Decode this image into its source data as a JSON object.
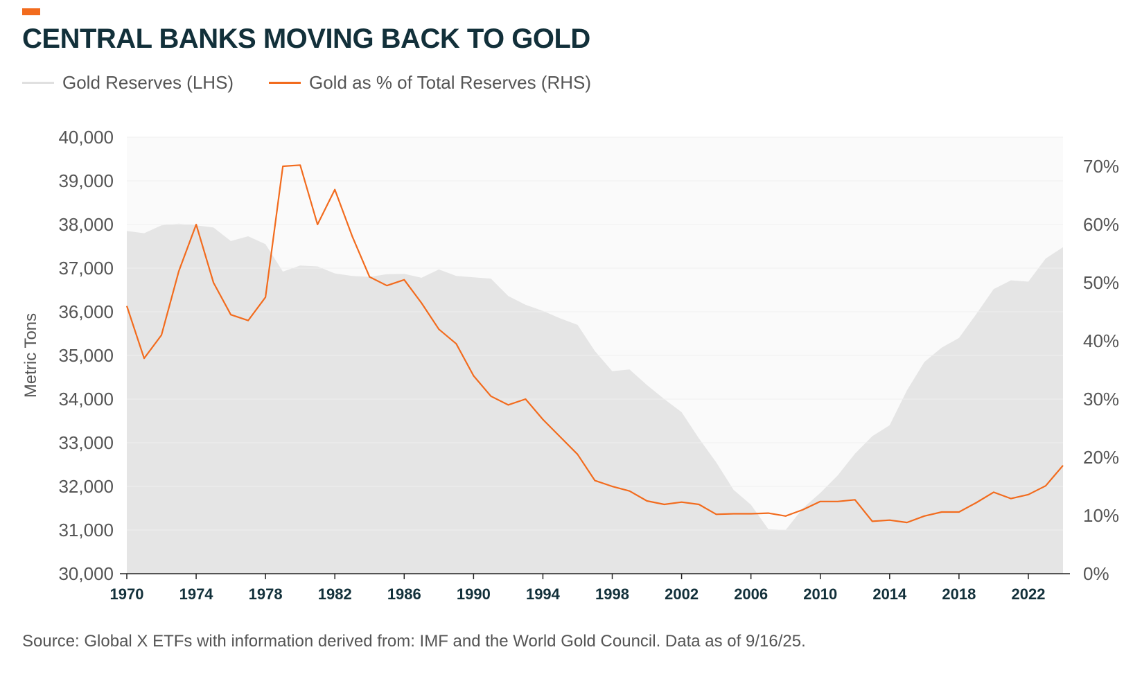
{
  "title": "CENTRAL BANKS MOVING BACK TO GOLD",
  "colors": {
    "accent": "#f26b1d",
    "area": "#e5e5e5",
    "line": "#f26b1d",
    "title": "#12303a",
    "text": "#555555"
  },
  "legend": [
    {
      "label": "Gold Reserves (LHS)",
      "color": "#e0e0e0"
    },
    {
      "label": "Gold as % of Total Reserves (RHS)",
      "color": "#f26b1d"
    }
  ],
  "source": "Source: Global X ETFs with information derived from: IMF and the World Gold Council. Data as of 9/16/25.",
  "chart_data": {
    "type": "area",
    "ylabel": "Metric Tons",
    "ylim": [
      30000,
      40000
    ],
    "y_ticks": [
      "30,000",
      "31,000",
      "32,000",
      "33,000",
      "34,000",
      "35,000",
      "36,000",
      "37,000",
      "38,000",
      "39,000",
      "40,000"
    ],
    "y2lim": [
      0,
      75
    ],
    "y2_ticks": [
      "0%",
      "10%",
      "20%",
      "30%",
      "40%",
      "50%",
      "60%",
      "70%"
    ],
    "xlim": [
      1970,
      2025
    ],
    "x_ticks": [
      "1970",
      "1974",
      "1978",
      "1982",
      "1986",
      "1990",
      "1994",
      "1998",
      "2002",
      "2006",
      "2010",
      "2014",
      "2018",
      "2022"
    ],
    "grid": true,
    "series": [
      {
        "name": "Gold Reserves (LHS)",
        "type": "area",
        "axis": "left",
        "x": [
          1970,
          1971,
          1972,
          1973,
          1974,
          1975,
          1976,
          1977,
          1978,
          1979,
          1980,
          1981,
          1982,
          1983,
          1984,
          1985,
          1986,
          1987,
          1988,
          1989,
          1990,
          1991,
          1992,
          1993,
          1994,
          1995,
          1996,
          1997,
          1998,
          1999,
          2000,
          2001,
          2002,
          2003,
          2004,
          2005,
          2006,
          2007,
          2008,
          2009,
          2010,
          2011,
          2012,
          2013,
          2014,
          2015,
          2016,
          2017,
          2018,
          2019,
          2020,
          2021,
          2022,
          2023,
          2024
        ],
        "values": [
          37850,
          37800,
          37980,
          38020,
          37980,
          37930,
          37620,
          37730,
          37550,
          36920,
          37060,
          37040,
          36880,
          36820,
          36800,
          36860,
          36870,
          36780,
          36970,
          36820,
          36790,
          36760,
          36360,
          36160,
          36020,
          35850,
          35700,
          35100,
          34640,
          34680,
          34320,
          34000,
          33700,
          33100,
          32550,
          31920,
          31580,
          31020,
          31000,
          31500,
          31850,
          32250,
          32750,
          33150,
          33400,
          34200,
          34850,
          35180,
          35400,
          35950,
          36520,
          36720,
          36690,
          37220,
          37480
        ]
      },
      {
        "name": "Gold as % of Total Reserves (RHS)",
        "type": "line",
        "axis": "right",
        "x": [
          1970,
          1971,
          1972,
          1973,
          1974,
          1975,
          1976,
          1977,
          1978,
          1979,
          1980,
          1981,
          1982,
          1983,
          1984,
          1985,
          1986,
          1987,
          1988,
          1989,
          1990,
          1991,
          1992,
          1993,
          1994,
          1995,
          1996,
          1997,
          1998,
          1999,
          2000,
          2001,
          2002,
          2003,
          2004,
          2005,
          2006,
          2007,
          2008,
          2009,
          2010,
          2011,
          2012,
          2013,
          2014,
          2015,
          2016,
          2017,
          2018,
          2019,
          2020,
          2021,
          2022,
          2023,
          2024
        ],
        "values": [
          46,
          37,
          41,
          52,
          60,
          50,
          44.5,
          43.5,
          47.5,
          70,
          70.2,
          60,
          66,
          58,
          51,
          49.5,
          50.5,
          46.5,
          42,
          39.5,
          34,
          30.5,
          29,
          30,
          26.5,
          23.5,
          20.5,
          16,
          15,
          14.2,
          12.5,
          11.9,
          12.3,
          11.9,
          10.2,
          10.3,
          10.3,
          10.4,
          9.9,
          11,
          12.4,
          12.4,
          12.7,
          9,
          9.2,
          8.8,
          9.9,
          10.6,
          10.6,
          12.2,
          14,
          12.9,
          13.6,
          15.1,
          18.6
        ]
      }
    ]
  }
}
